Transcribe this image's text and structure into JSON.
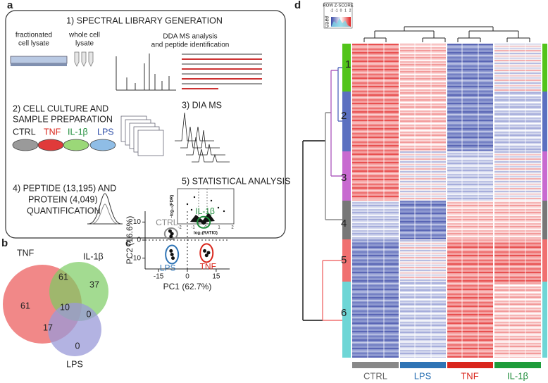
{
  "panel_a": {
    "label": "a",
    "step1_title": "1) SPECTRAL LIBRARY GENERATION",
    "step1_labels": [
      "fractionated",
      "cell lysate",
      "whole cell",
      "lysate",
      "DDA MS analysis",
      "and peptide identification"
    ],
    "step2_title": [
      "2) CELL CULTURE AND",
      "SAMPLE PREPARATION"
    ],
    "conditions": [
      "CTRL",
      "TNF",
      "IL-1β",
      "LPS"
    ],
    "step3_title": "3) DIA MS",
    "step4_title": [
      "4) PEPTIDE (13,195) AND",
      "PROTEIN (4,049)",
      "QUANTIFICATION"
    ],
    "step5_title": "5) STATISTICAL ANALYSIS",
    "volcano_xlabel": "log₂(RATIO)",
    "volcano_ylabel": "-log₁₀(FDR)",
    "volcano_xticks": [
      "-2",
      "-1",
      "0",
      "1",
      "2"
    ]
  },
  "panel_b": {
    "label": "b",
    "sets": [
      "TNF",
      "IL-1β",
      "LPS"
    ],
    "regions": {
      "tnf_only": 61,
      "il1b_only": 37,
      "lps_only": 0,
      "tnf_il1b": 61,
      "all": 10,
      "tnf_lps": 17,
      "il1b_lps": 0
    }
  },
  "chart_data": {
    "type": "scatter",
    "label": "c",
    "x_label": "PC1 (62.7%)",
    "y_label": "PC2 (16.6%)",
    "xlim": [
      -22,
      22
    ],
    "ylim": [
      -16,
      16
    ],
    "xticks": [
      -15,
      0,
      15
    ],
    "yticks": [
      -10,
      0,
      10
    ],
    "series": [
      {
        "name": "CTRL",
        "color": "#8a8a8a",
        "x": [
          -9,
          -8,
          -8.5
        ],
        "y": [
          5,
          3.5,
          2
        ]
      },
      {
        "name": "IL-1β",
        "color": "#1e8c3a",
        "x": [
          8,
          9,
          8.5
        ],
        "y": [
          10,
          10,
          9.5
        ]
      },
      {
        "name": "LPS",
        "color": "#2f74b5",
        "x": [
          -8.5,
          -8,
          -7.5
        ],
        "y": [
          -6,
          -8,
          -10
        ]
      },
      {
        "name": "TNF",
        "color": "#d9261c",
        "x": [
          9,
          11,
          10
        ],
        "y": [
          -6,
          -7,
          -8.5
        ]
      }
    ]
  },
  "panel_d": {
    "label": "d",
    "legend_title": "ROW Z-SCORE",
    "legend_ticks": [
      -2,
      -1,
      0,
      1,
      2
    ],
    "count_label": "COUNT",
    "count_ticks": [
      0,
      5,
      10,
      15
    ],
    "clusters": [
      "1",
      "2",
      "3",
      "4",
      "5",
      "6"
    ],
    "groups": [
      "CTRL",
      "LPS",
      "TNF",
      "IL-1β"
    ]
  }
}
